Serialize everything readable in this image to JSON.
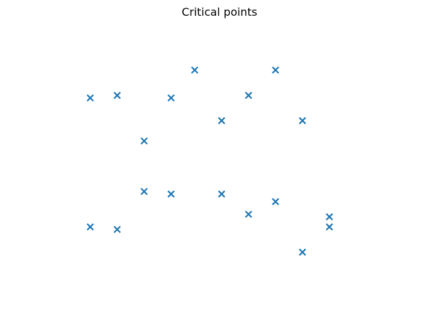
{
  "chart_data": {
    "type": "scatter",
    "title": "Critical points",
    "xlabel": "",
    "ylabel": "",
    "axes_visible": false,
    "grid": false,
    "marker": "x",
    "color": "#1f77b4",
    "xlim": [
      0.45,
      10.55
    ],
    "ylim": [
      0.0,
      10.0
    ],
    "series": [
      {
        "points": [
          [
            1.5,
            7.7
          ],
          [
            2.3,
            7.8
          ],
          [
            3.1,
            6.0
          ],
          [
            3.9,
            7.7
          ],
          [
            4.6,
            8.8
          ],
          [
            5.4,
            6.8
          ],
          [
            6.2,
            7.8
          ],
          [
            7.0,
            8.8
          ],
          [
            7.8,
            6.8
          ],
          [
            3.1,
            4.0
          ],
          [
            3.9,
            3.9
          ],
          [
            5.4,
            3.9
          ],
          [
            6.2,
            3.1
          ],
          [
            7.0,
            3.6
          ],
          [
            1.5,
            2.6
          ],
          [
            2.3,
            2.5
          ],
          [
            7.8,
            1.6
          ],
          [
            8.6,
            3.0
          ],
          [
            8.6,
            2.6
          ]
        ]
      }
    ]
  }
}
